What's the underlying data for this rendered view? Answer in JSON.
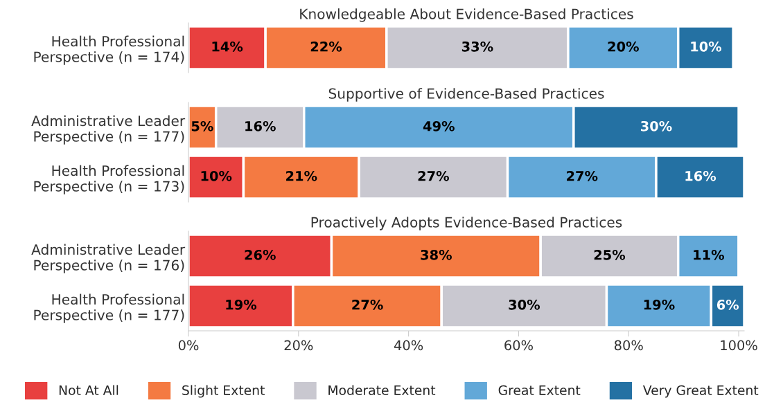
{
  "chart_data": [
    {
      "type": "bar",
      "orientation": "horizontal",
      "stacked": true,
      "title": "Knowledgeable About Evidence-Based Practices",
      "categories": [
        "Health Professional\nPerspective (n = 174)"
      ],
      "tick_labels": "y",
      "series": [
        {
          "color": "#e8403f",
          "values": [
            14
          ],
          "value_labels": [
            "14%"
          ]
        },
        {
          "color": "#f47a42",
          "values": [
            22
          ],
          "value_labels": [
            "22%"
          ]
        },
        {
          "color": "#c9c8d0",
          "values": [
            33
          ],
          "value_labels": [
            "33%"
          ]
        },
        {
          "color": "#62a8d8",
          "values": [
            20
          ],
          "value_labels": [
            "20%"
          ]
        },
        {
          "color": "#2471a3",
          "values": [
            10
          ],
          "value_labels": [
            "10%"
          ]
        }
      ]
    },
    {
      "type": "bar",
      "orientation": "horizontal",
      "stacked": true,
      "title": "Supportive of Evidence-Based Practices",
      "categories": [
        "Administrative Leader\nPerspective (n = 177)",
        "Health Professional\nPerspective (n = 173)"
      ],
      "tick_labels": "y",
      "series": [
        {
          "color": "#e8403f",
          "values": [
            null,
            10
          ],
          "value_labels": [
            null,
            "10%"
          ]
        },
        {
          "color": "#f47a42",
          "values": [
            5,
            21
          ],
          "value_labels": [
            "5%",
            "21%"
          ]
        },
        {
          "color": "#c9c8d0",
          "values": [
            16,
            27
          ],
          "value_labels": [
            "16%",
            "27%"
          ]
        },
        {
          "color": "#62a8d8",
          "values": [
            49,
            27
          ],
          "value_labels": [
            "49%",
            "27%"
          ]
        },
        {
          "color": "#2471a3",
          "values": [
            30,
            16
          ],
          "value_labels": [
            "30%",
            "16%"
          ]
        }
      ]
    },
    {
      "type": "bar",
      "orientation": "horizontal",
      "stacked": true,
      "title": "Proactively Adopts Evidence-Based Practices",
      "categories": [
        "Administrative Leader\nPerspective (n = 176)",
        "Health Professional\nPerspective (n = 177)"
      ],
      "xlim": [
        0,
        101
      ],
      "xticks": [
        {
          "value": 0,
          "label": "0%"
        },
        {
          "value": 20,
          "label": "20%"
        },
        {
          "value": 40,
          "label": "40%"
        },
        {
          "value": 60,
          "label": "60%"
        },
        {
          "value": 80,
          "label": "80%"
        },
        {
          "value": 100,
          "label": "100%"
        }
      ],
      "legend": "bottom",
      "series": [
        {
          "name": "Not At All",
          "color": "#e8403f",
          "values": [
            26,
            19
          ],
          "value_labels": [
            "26%",
            "19%"
          ]
        },
        {
          "name": "Slight Extent",
          "color": "#f47a42",
          "values": [
            38,
            27
          ],
          "value_labels": [
            "38%",
            "27%"
          ]
        },
        {
          "name": "Moderate Extent",
          "color": "#c9c8d0",
          "values": [
            25,
            30
          ],
          "value_labels": [
            "25%",
            "30%"
          ]
        },
        {
          "name": "Great Extent",
          "color": "#62a8d8",
          "values": [
            11,
            19
          ],
          "value_labels": [
            "11%",
            "19%"
          ]
        },
        {
          "name": "Very Great Extent",
          "color": "#2471a3",
          "values": [
            null,
            6
          ],
          "value_labels": [
            null,
            "6%"
          ]
        }
      ]
    }
  ]
}
